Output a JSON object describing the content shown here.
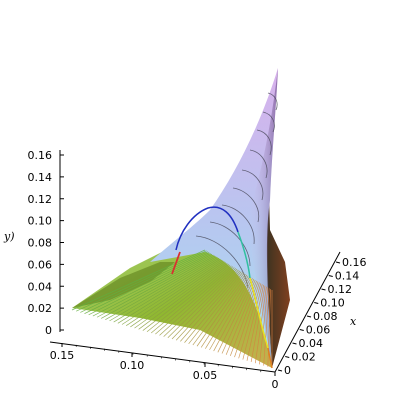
{
  "chart_data": {
    "type": "surface3d",
    "axes": {
      "z": {
        "label": "y)",
        "range": [
          0,
          0.16
        ],
        "ticks": [
          "0",
          "0.02",
          "0.04",
          "0.06",
          "0.08",
          "0.10",
          "0.12",
          "0.14",
          "0.16"
        ]
      },
      "y": {
        "label": "",
        "range": [
          0,
          0.15
        ],
        "ticks": [
          "0",
          "0.05",
          "0.10",
          "0.15"
        ]
      },
      "x": {
        "label": "x",
        "range": [
          0,
          0.16
        ],
        "ticks": [
          "0",
          "0.02",
          "0.04",
          "0.06",
          "0.08",
          "0.10",
          "0.12",
          "0.14",
          "0.16"
        ]
      }
    },
    "curves": [
      {
        "color": "#d93030"
      },
      {
        "color": "#2030c0"
      },
      {
        "color": "#30c0a0"
      },
      {
        "color": "#e8e020"
      }
    ],
    "colors": {
      "surface_top": "#c8a0e8",
      "surface_mid": "#9ad8e8",
      "surface_low": "#8ab030",
      "mesh_green": "#60b040",
      "mesh_orange": "#e08040"
    }
  }
}
